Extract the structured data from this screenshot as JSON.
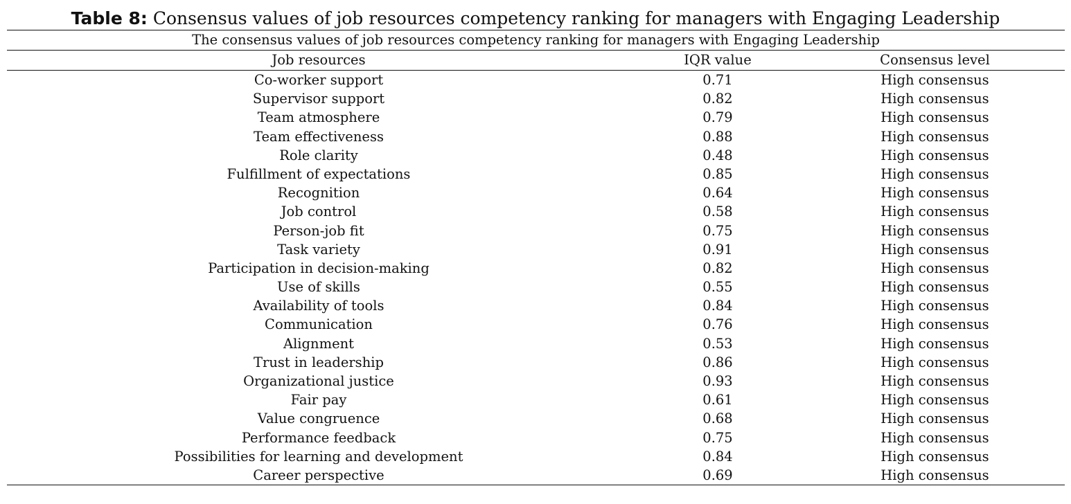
{
  "caption": {
    "label": "Table 8:",
    "text": " Consensus values of job resources competency ranking for managers with Engaging Leadership"
  },
  "table": {
    "subtitle": "The consensus values of job resources competency ranking for managers with Engaging Leadership",
    "headers": [
      "Job resources",
      "IQR value",
      "Consensus level"
    ],
    "rows": [
      [
        "Co-worker support",
        "0.71",
        "High consensus"
      ],
      [
        "Supervisor support",
        "0.82",
        "High consensus"
      ],
      [
        "Team atmosphere",
        "0.79",
        "High consensus"
      ],
      [
        "Team effectiveness",
        "0.88",
        "High consensus"
      ],
      [
        "Role clarity",
        "0.48",
        "High consensus"
      ],
      [
        "Fulfillment of expectations",
        "0.85",
        "High consensus"
      ],
      [
        "Recognition",
        "0.64",
        "High consensus"
      ],
      [
        "Job control",
        "0.58",
        "High consensus"
      ],
      [
        "Person-job fit",
        "0.75",
        "High consensus"
      ],
      [
        "Task variety",
        "0.91",
        "High consensus"
      ],
      [
        "Participation in decision-making",
        "0.82",
        "High consensus"
      ],
      [
        "Use of skills",
        "0.55",
        "High consensus"
      ],
      [
        "Availability of tools",
        "0.84",
        "High consensus"
      ],
      [
        "Communication",
        "0.76",
        "High consensus"
      ],
      [
        "Alignment",
        "0.53",
        "High consensus"
      ],
      [
        "Trust in leadership",
        "0.86",
        "High consensus"
      ],
      [
        "Organizational justice",
        "0.93",
        "High consensus"
      ],
      [
        "Fair pay",
        "0.61",
        "High consensus"
      ],
      [
        "Value congruence",
        "0.68",
        "High consensus"
      ],
      [
        "Performance feedback",
        "0.75",
        "High consensus"
      ],
      [
        "Possibilities for learning and development",
        "0.84",
        "High consensus"
      ],
      [
        "Career perspective",
        "0.69",
        "High consensus"
      ]
    ]
  }
}
